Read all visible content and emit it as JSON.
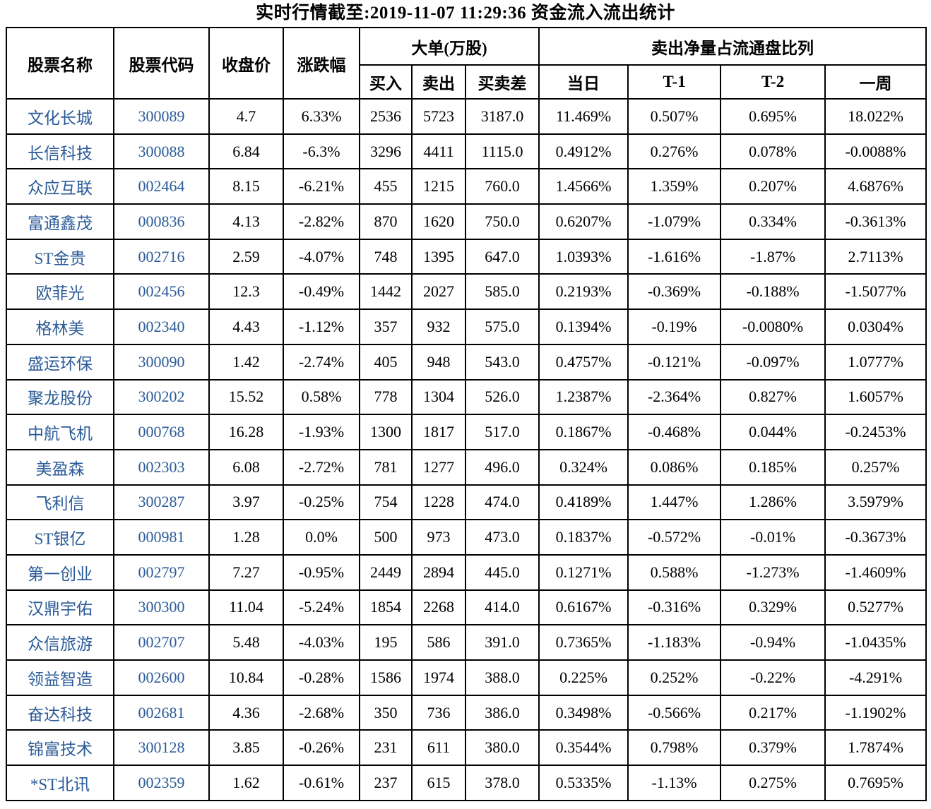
{
  "title": "实时行情截至:2019-11-07 11:29:36 资金流入流出统计",
  "colors": {
    "link_blue": "#2b5b99",
    "border": "#000000",
    "text": "#000000",
    "background": "#ffffff"
  },
  "chart_data": {
    "type": "table",
    "title": "实时行情截至:2019-11-07 11:29:36 资金流入流出统计",
    "column_groups": [
      {
        "label": "大单(万股)",
        "span": [
          "买入",
          "卖出",
          "买卖差"
        ]
      },
      {
        "label": "卖出净量占流通盘比列",
        "span": [
          "当日",
          "T-1",
          "T-2",
          "一周"
        ]
      }
    ],
    "columns": [
      "股票名称",
      "股票代码",
      "收盘价",
      "涨跌幅",
      "买入",
      "卖出",
      "买卖差",
      "当日",
      "T-1",
      "T-2",
      "一周"
    ],
    "rows": [
      [
        "文化长城",
        "300089",
        "4.7",
        "6.33%",
        "2536",
        "5723",
        "3187.0",
        "11.469%",
        "0.507%",
        "0.695%",
        "18.022%"
      ],
      [
        "长信科技",
        "300088",
        "6.84",
        "-6.3%",
        "3296",
        "4411",
        "1115.0",
        "0.4912%",
        "0.276%",
        "0.078%",
        "-0.0088%"
      ],
      [
        "众应互联",
        "002464",
        "8.15",
        "-6.21%",
        "455",
        "1215",
        "760.0",
        "1.4566%",
        "1.359%",
        "0.207%",
        "4.6876%"
      ],
      [
        "富通鑫茂",
        "000836",
        "4.13",
        "-2.82%",
        "870",
        "1620",
        "750.0",
        "0.6207%",
        "-1.079%",
        "0.334%",
        "-0.3613%"
      ],
      [
        "ST金贵",
        "002716",
        "2.59",
        "-4.07%",
        "748",
        "1395",
        "647.0",
        "1.0393%",
        "-1.616%",
        "-1.87%",
        "2.7113%"
      ],
      [
        "欧菲光",
        "002456",
        "12.3",
        "-0.49%",
        "1442",
        "2027",
        "585.0",
        "0.2193%",
        "-0.369%",
        "-0.188%",
        "-1.5077%"
      ],
      [
        "格林美",
        "002340",
        "4.43",
        "-1.12%",
        "357",
        "932",
        "575.0",
        "0.1394%",
        "-0.19%",
        "-0.0080%",
        "0.0304%"
      ],
      [
        "盛运环保",
        "300090",
        "1.42",
        "-2.74%",
        "405",
        "948",
        "543.0",
        "0.4757%",
        "-0.121%",
        "-0.097%",
        "1.0777%"
      ],
      [
        "聚龙股份",
        "300202",
        "15.52",
        "0.58%",
        "778",
        "1304",
        "526.0",
        "1.2387%",
        "-2.364%",
        "0.827%",
        "1.6057%"
      ],
      [
        "中航飞机",
        "000768",
        "16.28",
        "-1.93%",
        "1300",
        "1817",
        "517.0",
        "0.1867%",
        "-0.468%",
        "0.044%",
        "-0.2453%"
      ],
      [
        "美盈森",
        "002303",
        "6.08",
        "-2.72%",
        "781",
        "1277",
        "496.0",
        "0.324%",
        "0.086%",
        "0.185%",
        "0.257%"
      ],
      [
        "飞利信",
        "300287",
        "3.97",
        "-0.25%",
        "754",
        "1228",
        "474.0",
        "0.4189%",
        "1.447%",
        "1.286%",
        "3.5979%"
      ],
      [
        "ST银亿",
        "000981",
        "1.28",
        "0.0%",
        "500",
        "973",
        "473.0",
        "0.1837%",
        "-0.572%",
        "-0.01%",
        "-0.3673%"
      ],
      [
        "第一创业",
        "002797",
        "7.27",
        "-0.95%",
        "2449",
        "2894",
        "445.0",
        "0.1271%",
        "0.588%",
        "-1.273%",
        "-1.4609%"
      ],
      [
        "汉鼎宇佑",
        "300300",
        "11.04",
        "-5.24%",
        "1854",
        "2268",
        "414.0",
        "0.6167%",
        "-0.316%",
        "0.329%",
        "0.5277%"
      ],
      [
        "众信旅游",
        "002707",
        "5.48",
        "-4.03%",
        "195",
        "586",
        "391.0",
        "0.7365%",
        "-1.183%",
        "-0.94%",
        "-1.0435%"
      ],
      [
        "领益智造",
        "002600",
        "10.84",
        "-0.28%",
        "1586",
        "1974",
        "388.0",
        "0.225%",
        "0.252%",
        "-0.22%",
        "-4.291%"
      ],
      [
        "奋达科技",
        "002681",
        "4.36",
        "-2.68%",
        "350",
        "736",
        "386.0",
        "0.3498%",
        "-0.566%",
        "0.217%",
        "-1.1902%"
      ],
      [
        "锦富技术",
        "300128",
        "3.85",
        "-0.26%",
        "231",
        "611",
        "380.0",
        "0.3544%",
        "0.798%",
        "0.379%",
        "1.7874%"
      ],
      [
        "*ST北讯",
        "002359",
        "1.62",
        "-0.61%",
        "237",
        "615",
        "378.0",
        "0.5335%",
        "-1.13%",
        "0.275%",
        "0.7695%"
      ]
    ]
  }
}
